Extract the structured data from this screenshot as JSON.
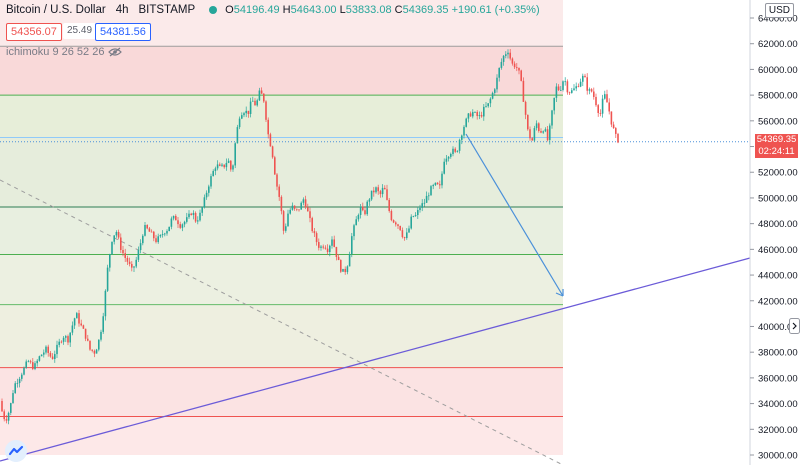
{
  "header": {
    "symbol": "Bitcoin / U.S. Dollar",
    "interval": "4h",
    "exchange": "BITSTAMP",
    "open": "54196.49",
    "high": "54643.00",
    "low": "53833.08",
    "close": "54369.35",
    "change": "+190.61 (+0.35%)"
  },
  "quotes": {
    "sell": "54356.07",
    "spread": "25.49",
    "buy": "54381.56"
  },
  "indicator": {
    "label": "ichimoku 9 26 52 26"
  },
  "currency": "USD",
  "last_price": {
    "value": "54369.35",
    "countdown": "02:24:11"
  },
  "axis_ticks": [
    "64000.00",
    "62000.00",
    "60000.00",
    "58000.00",
    "56000.00",
    "54000.00",
    "52000.00",
    "50000.00",
    "48000.00",
    "46000.00",
    "44000.00",
    "42000.00",
    "40000.00",
    "38000.00",
    "36000.00",
    "34000.00",
    "32000.00",
    "30000.00"
  ],
  "colors": {
    "up": "#26a69a",
    "down": "#ef5350",
    "trendline": "#6b5bd8",
    "arrow": "#4a90d9"
  },
  "chart_data": {
    "type": "candlestick",
    "symbol": "BTCUSD",
    "interval": "4h",
    "ylim": [
      30000,
      64500
    ],
    "fib_levels": [
      61800,
      58000,
      54700,
      49300,
      45600,
      41700,
      36800,
      33000
    ],
    "fib_bands": [
      {
        "from": 61800,
        "to": 58000,
        "color": "#f9d9d9"
      },
      {
        "from": 58000,
        "to": 54700,
        "color": "#e7eed9"
      },
      {
        "from": 54700,
        "to": 49300,
        "color": "#e6eddc"
      },
      {
        "from": 49300,
        "to": 45600,
        "color": "#e8efe0"
      },
      {
        "from": 45600,
        "to": 41700,
        "color": "#ecf0e1"
      },
      {
        "from": 41700,
        "to": 36800,
        "color": "#eeefe0"
      },
      {
        "from": 36800,
        "to": 33000,
        "color": "#fbe3e3"
      },
      {
        "from": 33000,
        "to": 30000,
        "color": "#fde8e8"
      }
    ],
    "close_path": [
      [
        0,
        34200
      ],
      [
        3,
        33000
      ],
      [
        6,
        32800
      ],
      [
        10,
        33600
      ],
      [
        14,
        35400
      ],
      [
        18,
        35900
      ],
      [
        24,
        36700
      ],
      [
        28,
        37300
      ],
      [
        34,
        36800
      ],
      [
        40,
        37700
      ],
      [
        46,
        38200
      ],
      [
        52,
        37500
      ],
      [
        58,
        38500
      ],
      [
        63,
        39300
      ],
      [
        68,
        39000
      ],
      [
        72,
        40000
      ],
      [
        76,
        41000
      ],
      [
        80,
        40200
      ],
      [
        85,
        39400
      ],
      [
        90,
        38200
      ],
      [
        95,
        38000
      ],
      [
        100,
        39200
      ],
      [
        104,
        41500
      ],
      [
        108,
        44800
      ],
      [
        112,
        46800
      ],
      [
        116,
        47500
      ],
      [
        120,
        46300
      ],
      [
        124,
        45500
      ],
      [
        128,
        45000
      ],
      [
        132,
        44300
      ],
      [
        136,
        45100
      ],
      [
        140,
        46300
      ],
      [
        144,
        47700
      ],
      [
        148,
        47500
      ],
      [
        152,
        47100
      ],
      [
        156,
        46700
      ],
      [
        160,
        46900
      ],
      [
        164,
        47400
      ],
      [
        168,
        47600
      ],
      [
        172,
        48400
      ],
      [
        176,
        48400
      ],
      [
        180,
        47900
      ],
      [
        184,
        48100
      ],
      [
        188,
        48400
      ],
      [
        192,
        49000
      ],
      [
        196,
        48200
      ],
      [
        200,
        48700
      ],
      [
        204,
        49700
      ],
      [
        208,
        50900
      ],
      [
        212,
        51800
      ],
      [
        216,
        52600
      ],
      [
        220,
        52300
      ],
      [
        224,
        52500
      ],
      [
        228,
        53000
      ],
      [
        232,
        51900
      ],
      [
        236,
        54800
      ],
      [
        240,
        56600
      ],
      [
        244,
        56800
      ],
      [
        248,
        56600
      ],
      [
        252,
        57600
      ],
      [
        256,
        57200
      ],
      [
        260,
        58300
      ],
      [
        264,
        57600
      ],
      [
        268,
        55000
      ],
      [
        272,
        53700
      ],
      [
        276,
        51300
      ],
      [
        280,
        49800
      ],
      [
        284,
        47200
      ],
      [
        288,
        48800
      ],
      [
        292,
        49300
      ],
      [
        296,
        48900
      ],
      [
        300,
        49300
      ],
      [
        304,
        50000
      ],
      [
        308,
        48800
      ],
      [
        312,
        47600
      ],
      [
        316,
        46700
      ],
      [
        320,
        46100
      ],
      [
        324,
        46400
      ],
      [
        328,
        46000
      ],
      [
        332,
        46900
      ],
      [
        336,
        45700
      ],
      [
        340,
        44600
      ],
      [
        344,
        44100
      ],
      [
        348,
        45000
      ],
      [
        352,
        47100
      ],
      [
        356,
        48200
      ],
      [
        360,
        49300
      ],
      [
        364,
        48600
      ],
      [
        368,
        49800
      ],
      [
        372,
        50400
      ],
      [
        376,
        50700
      ],
      [
        380,
        50200
      ],
      [
        384,
        50900
      ],
      [
        388,
        49300
      ],
      [
        392,
        48300
      ],
      [
        396,
        48100
      ],
      [
        400,
        47700
      ],
      [
        404,
        46800
      ],
      [
        408,
        47300
      ],
      [
        412,
        48600
      ],
      [
        416,
        48600
      ],
      [
        420,
        49300
      ],
      [
        424,
        49600
      ],
      [
        428,
        50300
      ],
      [
        432,
        50800
      ],
      [
        436,
        51000
      ],
      [
        440,
        50800
      ],
      [
        444,
        53000
      ],
      [
        448,
        53400
      ],
      [
        452,
        53700
      ],
      [
        456,
        53400
      ],
      [
        460,
        54700
      ],
      [
        464,
        55600
      ],
      [
        468,
        56300
      ],
      [
        472,
        56700
      ],
      [
        476,
        56400
      ],
      [
        480,
        56300
      ],
      [
        484,
        56900
      ],
      [
        488,
        57200
      ],
      [
        492,
        58000
      ],
      [
        496,
        58900
      ],
      [
        500,
        60300
      ],
      [
        504,
        61100
      ],
      [
        508,
        61500
      ],
      [
        512,
        60400
      ],
      [
        516,
        60300
      ],
      [
        520,
        59500
      ],
      [
        524,
        57400
      ],
      [
        528,
        55100
      ],
      [
        532,
        54400
      ],
      [
        536,
        55900
      ],
      [
        540,
        55100
      ],
      [
        544,
        55500
      ],
      [
        548,
        54400
      ],
      [
        552,
        56600
      ],
      [
        556,
        58600
      ],
      [
        560,
        58400
      ],
      [
        564,
        59400
      ],
      [
        568,
        58300
      ],
      [
        572,
        58300
      ],
      [
        576,
        58600
      ],
      [
        580,
        59100
      ],
      [
        584,
        59500
      ],
      [
        588,
        58300
      ],
      [
        592,
        58300
      ],
      [
        596,
        57400
      ],
      [
        600,
        56400
      ],
      [
        604,
        58100
      ],
      [
        608,
        57200
      ],
      [
        612,
        55700
      ],
      [
        616,
        54700
      ],
      [
        620,
        54369
      ]
    ]
  }
}
